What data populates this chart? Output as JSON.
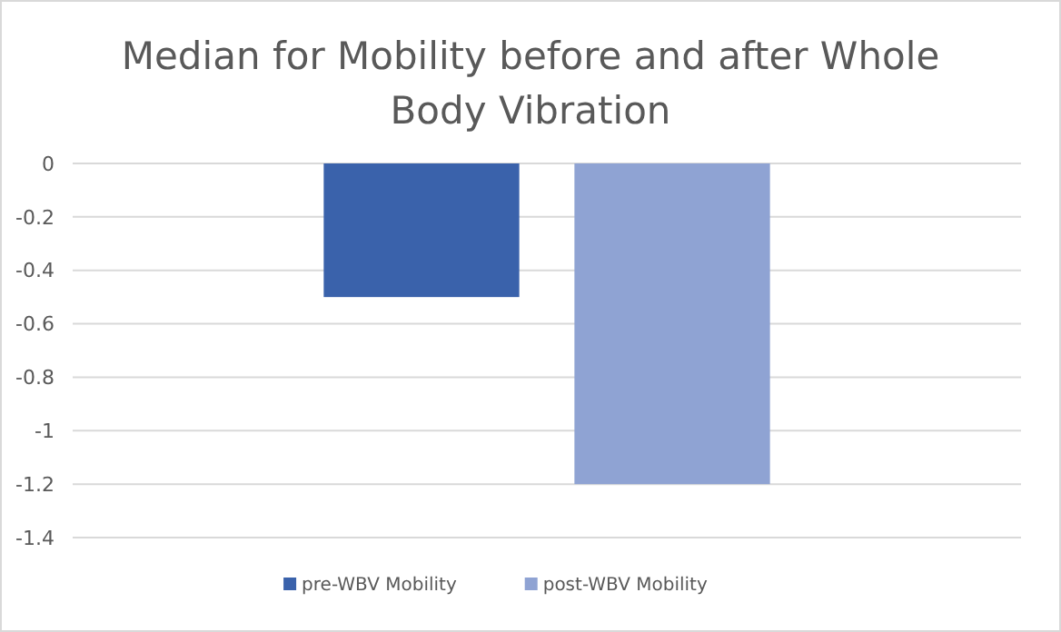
{
  "chart_data": {
    "type": "bar",
    "title": "Median for Mobility before and after Whole Body Vibration",
    "categories": [
      null
    ],
    "series": [
      {
        "name": "pre-WBV Mobility",
        "color": "#3a62ab",
        "values": [
          -0.5
        ]
      },
      {
        "name": "post-WBV Mobility",
        "color": "#8fa3d3",
        "values": [
          -1.2
        ]
      }
    ],
    "ylim": [
      -1.4,
      0
    ],
    "yticks": [
      0,
      -0.2,
      -0.4,
      -0.6,
      -0.8,
      -1,
      -1.2,
      -1.4
    ],
    "grid": "y",
    "legend": "bottom"
  }
}
